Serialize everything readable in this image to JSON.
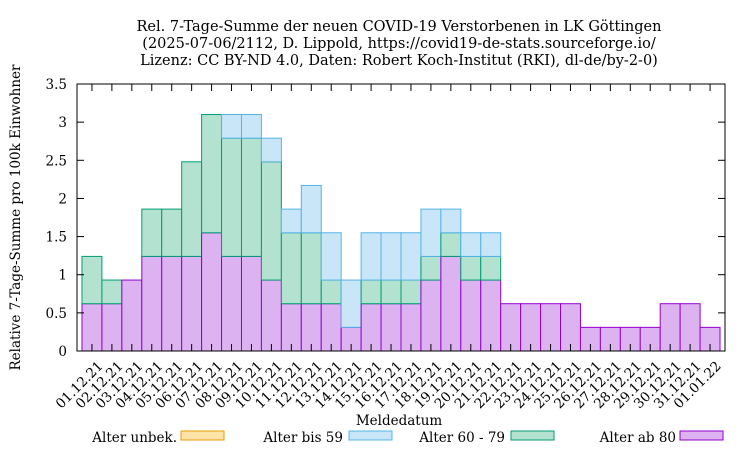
{
  "chart_data": {
    "type": "bar",
    "stacked": true,
    "title_lines": [
      "Rel. 7-Tage-Summe der neuen COVID-19 Verstorbenen in LK Göttingen",
      "(2025-07-06/2112, D. Lippold, https://covid19-de-stats.sourceforge.io/",
      "Lizenz: CC BY-ND 4.0, Daten: Robert Koch-Institut (RKI), dl-de/by-2-0)"
    ],
    "xlabel": "Meldedatum",
    "ylabel": "Relative 7-Tage-Summe pro 100k Einwohner",
    "ylim": [
      0,
      3.5
    ],
    "yticks": [
      "0",
      "0.5",
      "1",
      "1.5",
      "2",
      "2.5",
      "3",
      "3.5"
    ],
    "grid": false,
    "legend_position": "bottom",
    "categories": [
      "01.12.21",
      "02.12.21",
      "03.12.21",
      "04.12.21",
      "05.12.21",
      "06.12.21",
      "07.12.21",
      "08.12.21",
      "09.12.21",
      "10.12.21",
      "11.12.21",
      "12.12.21",
      "13.12.21",
      "14.12.21",
      "15.12.21",
      "16.12.21",
      "17.12.21",
      "18.12.21",
      "19.12.21",
      "20.12.21",
      "21.12.21",
      "22.12.21",
      "23.12.21",
      "24.12.21",
      "25.12.21",
      "26.12.21",
      "27.12.21",
      "28.12.21",
      "29.12.21",
      "30.12.21",
      "31.12.21",
      "01.01.22"
    ],
    "series": [
      {
        "name": "Alter unbek.",
        "fill": "#fde3a7",
        "stroke": "#e69f00",
        "values": [
          0,
          0,
          0,
          0,
          0,
          0,
          0,
          0,
          0,
          0,
          0,
          0,
          0,
          0,
          0,
          0,
          0,
          0,
          0,
          0,
          0,
          0,
          0,
          0,
          0,
          0,
          0,
          0,
          0,
          0,
          0,
          0
        ]
      },
      {
        "name": "Alter ab 80",
        "fill": "#dcb2f0",
        "stroke": "#9400d3",
        "values": [
          0.62,
          0.62,
          0.93,
          1.24,
          1.24,
          1.24,
          1.55,
          1.24,
          1.24,
          0.93,
          0.62,
          0.62,
          0.62,
          0.31,
          0.62,
          0.62,
          0.62,
          0.93,
          1.24,
          0.93,
          0.93,
          0.62,
          0.62,
          0.62,
          0.62,
          0.31,
          0.31,
          0.31,
          0.31,
          0.62,
          0.62,
          0.31
        ]
      },
      {
        "name": "Alter 60 - 79",
        "fill": "#b3e2d1",
        "stroke": "#009e73",
        "values": [
          0.62,
          0.31,
          0,
          0.62,
          0.62,
          1.24,
          1.55,
          1.55,
          1.55,
          1.55,
          0.93,
          0.93,
          0.31,
          0,
          0.31,
          0.31,
          0.31,
          0.31,
          0.31,
          0.31,
          0.31,
          0,
          0,
          0,
          0,
          0,
          0,
          0,
          0,
          0,
          0,
          0
        ]
      },
      {
        "name": "Alter bis 59",
        "fill": "#c8e6f8",
        "stroke": "#56b4e9",
        "values": [
          0,
          0,
          0,
          0,
          0,
          0,
          0,
          0.31,
          0.31,
          0.31,
          0.31,
          0.62,
          0.62,
          0.62,
          0.62,
          0.62,
          0.62,
          0.62,
          0.31,
          0.31,
          0.31,
          0,
          0,
          0,
          0,
          0,
          0,
          0,
          0,
          0,
          0,
          0
        ]
      }
    ],
    "legend_order": [
      "Alter unbek.",
      "Alter bis 59",
      "Alter 60 - 79",
      "Alter ab 80"
    ]
  }
}
